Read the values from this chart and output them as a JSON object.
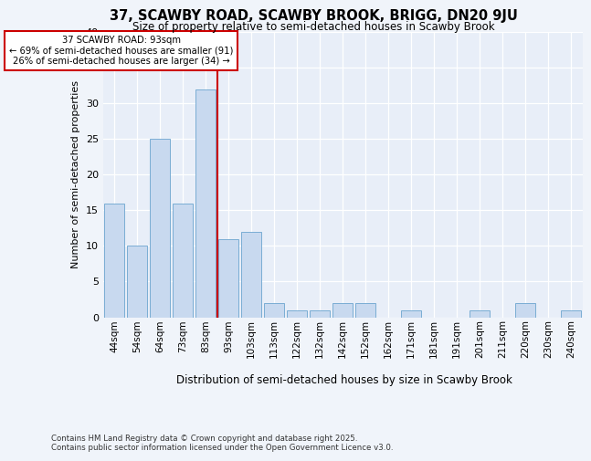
{
  "title_line1": "37, SCAWBY ROAD, SCAWBY BROOK, BRIGG, DN20 9JU",
  "title_line2": "Size of property relative to semi-detached houses in Scawby Brook",
  "xlabel": "Distribution of semi-detached houses by size in Scawby Brook",
  "ylabel": "Number of semi-detached properties",
  "categories": [
    "44sqm",
    "54sqm",
    "64sqm",
    "73sqm",
    "83sqm",
    "93sqm",
    "103sqm",
    "113sqm",
    "122sqm",
    "132sqm",
    "142sqm",
    "152sqm",
    "162sqm",
    "171sqm",
    "181sqm",
    "191sqm",
    "201sqm",
    "211sqm",
    "220sqm",
    "230sqm",
    "240sqm"
  ],
  "values": [
    16,
    10,
    25,
    16,
    32,
    11,
    12,
    2,
    1,
    1,
    2,
    2,
    0,
    1,
    0,
    0,
    1,
    0,
    2,
    0,
    1
  ],
  "bar_color": "#c8d9ef",
  "bar_edge_color": "#7aadd4",
  "highlight_index": 4,
  "highlight_line_color": "#cc0000",
  "annotation_text": "37 SCAWBY ROAD: 93sqm\n← 69% of semi-detached houses are smaller (91)\n26% of semi-detached houses are larger (34) →",
  "annotation_box_color": "#ffffff",
  "annotation_box_edge": "#cc0000",
  "ylim": [
    0,
    40
  ],
  "yticks": [
    0,
    5,
    10,
    15,
    20,
    25,
    30,
    35,
    40
  ],
  "footer": "Contains HM Land Registry data © Crown copyright and database right 2025.\nContains public sector information licensed under the Open Government Licence v3.0.",
  "bg_color": "#f0f4fa",
  "plot_bg_color": "#e8eef8"
}
